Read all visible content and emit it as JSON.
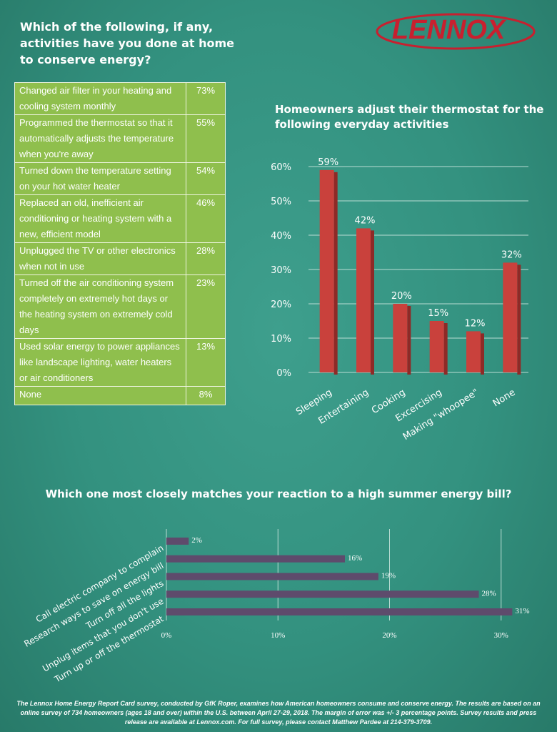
{
  "header": {
    "title": [
      "Which of the following, if any,",
      "activities have you done at home",
      "to conserve energy?"
    ]
  },
  "logo": "LENNOX",
  "table": {
    "rows": [
      [
        "Changed air filter in your heating and cooling system monthly",
        "73%"
      ],
      [
        "Programmed the thermostat so that it automatically adjusts the temperature when you're away",
        "55%"
      ],
      [
        "Turned down the temperature setting on your hot water heater",
        "54%"
      ],
      [
        "Replaced an old, inefficient air conditioning or heating system with a new, efficient model",
        "46%"
      ],
      [
        "Unplugged the TV or other electronics when not in use",
        "28%"
      ],
      [
        "Turned off the air conditioning system completely on extremely hot days or the heating system on extremely cold days",
        "23%"
      ],
      [
        "Used solar energy to power appliances like landscape lighting, water heaters or air conditioners",
        "13%"
      ],
      [
        "None",
        "8%"
      ]
    ]
  },
  "chart_data": [
    {
      "type": "bar",
      "title": [
        "Homeowners adjust their thermostat for the",
        "following everyday activities"
      ],
      "categories": [
        "Sleeping",
        "Entertaining",
        "Cooking",
        "Excercising",
        "Making \"whoopee\"",
        "None"
      ],
      "values": [
        59,
        42,
        20,
        15,
        12,
        32
      ],
      "value_labels": [
        "59%",
        "42%",
        "20%",
        "15%",
        "12%",
        "32%"
      ],
      "color": "#c9413c",
      "ylim": [
        0,
        60
      ],
      "yticks": [
        {
          "value": 0,
          "label": "0%"
        },
        {
          "value": 10,
          "label": "10%"
        },
        {
          "value": 20,
          "label": "20%"
        },
        {
          "value": 30,
          "label": "30%"
        },
        {
          "value": 40,
          "label": "40%"
        },
        {
          "value": 50,
          "label": "50%"
        },
        {
          "value": 60,
          "label": "60%"
        }
      ],
      "grid": true
    },
    {
      "type": "hbar",
      "title": "Which one most closely matches your reaction to a high summer energy bill?",
      "categories": [
        "Call electric company to complain",
        "Research ways to save on energy bill",
        "Turn off all the lights",
        "Unplug items that you don't use",
        "Turn up or off the thermostat"
      ],
      "values": [
        2,
        16,
        19,
        28,
        31
      ],
      "value_labels": [
        "2%",
        "16%",
        "19%",
        "28%",
        "31%"
      ],
      "color": "#5e4b6c",
      "xlim": [
        0,
        32
      ],
      "xticks": [
        {
          "value": 0,
          "label": "0%"
        },
        {
          "value": 10,
          "label": "10%"
        },
        {
          "value": 20,
          "label": "20%"
        },
        {
          "value": 30,
          "label": "30%"
        }
      ],
      "grid": true
    }
  ],
  "footer": "The Lennox Home Energy Report Card survey, conducted by GfK Roper, examines how American homeowners consume and conserve energy.  The results are based on an online survey of 734 homeowners (ages 18 and over) within the U.S. between April 27-29, 2018. The margin of error was +/- 3 percentage points. Survey results and press release are available at Lennox.com. For full survey, please contact Matthew Pardee at 214-379-3709."
}
